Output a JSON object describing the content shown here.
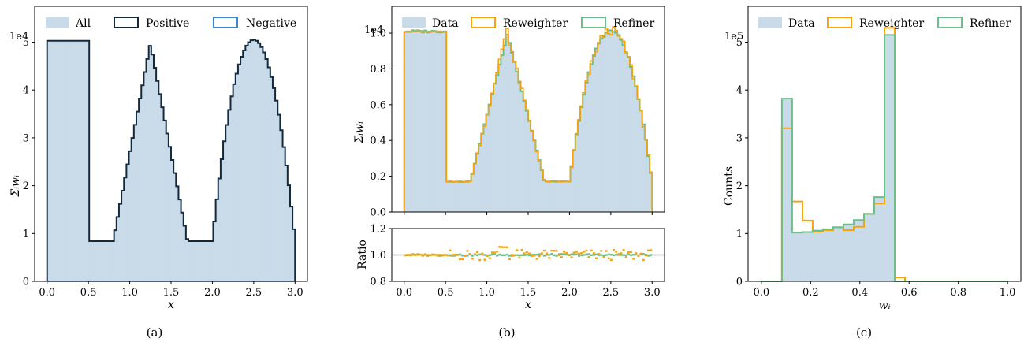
{
  "chart_data": [
    {
      "type": "area",
      "caption": "(a)",
      "xlabel": "x",
      "ylabel": "Σᵢwᵢ",
      "scale_label": "1e4",
      "xlim": [
        -0.15,
        3.15
      ],
      "ylim": [
        0,
        5.75
      ],
      "xticks": [
        0.0,
        0.5,
        1.0,
        1.5,
        2.0,
        2.5,
        3.0
      ],
      "xtick_labels": [
        "0.0",
        "0.5",
        "1.0",
        "1.5",
        "2.0",
        "2.5",
        "3.0"
      ],
      "yticks": [
        0,
        1,
        2,
        3,
        4,
        5
      ],
      "ytick_labels": [
        "0",
        "1",
        "2",
        "3",
        "4",
        "5"
      ],
      "legend": {
        "position": "top",
        "entries": [
          "All",
          "Positive",
          "Negative"
        ]
      },
      "series": [
        {
          "name": "All",
          "style": "filled",
          "color": "#c9dbe9",
          "shape": "flat 5.03 on [0,0.5]; flat 0.84 on [0.5,0.8]; triangle peak 4.97 at 1.25; flat 0.84 on [1.75,2.0]; rounded peak 5.05 at 2.5; ends at 3.0"
        },
        {
          "name": "Positive",
          "style": "step",
          "color": "#13293d",
          "shape": "identical to All"
        },
        {
          "name": "Negative",
          "style": "step",
          "color": "#3a86d4",
          "values": "0 everywhere"
        }
      ]
    },
    {
      "type": "area",
      "caption": "(b)",
      "xlabel": "x",
      "ylabel": "Σᵢwᵢ",
      "ratio_label": "Ratio",
      "scale_label": "1e4",
      "xlim": [
        -0.15,
        3.15
      ],
      "ylim": [
        0,
        1.15
      ],
      "ratio_ylim": [
        0.8,
        1.2
      ],
      "xticks": [
        0.0,
        0.5,
        1.0,
        1.5,
        2.0,
        2.5,
        3.0
      ],
      "xtick_labels": [
        "0.0",
        "0.5",
        "1.0",
        "1.5",
        "2.0",
        "2.5",
        "3.0"
      ],
      "yticks": [
        0.0,
        0.2,
        0.4,
        0.6,
        0.8,
        1.0
      ],
      "ytick_labels": [
        "0.0",
        "0.2",
        "0.4",
        "0.6",
        "0.8",
        "1.0"
      ],
      "ratio_yticks": [
        0.8,
        1.0,
        1.2
      ],
      "ratio_ytick_labels": [
        "0.8",
        "1.0",
        "1.2"
      ],
      "legend": {
        "position": "top",
        "entries": [
          "Data",
          "Reweighter",
          "Refiner"
        ]
      },
      "series": [
        {
          "name": "Data",
          "style": "filled",
          "color": "#c9dbe9",
          "shape": "flat 1.01 on [0,0.5]; flat 0.17 on [0.5,0.8]; peak 1.0 at 1.22; flat 0.17 on [1.75,2.0]; peak 1.02 at 2.55"
        },
        {
          "name": "Reweighter",
          "style": "step",
          "color": "#f5a30f",
          "shape": "follows Data with small fluctuations, peak 1.05 at 1.2"
        },
        {
          "name": "Refiner",
          "style": "step",
          "color": "#6bbf8a",
          "shape": "follows Data closely"
        }
      ],
      "ratio_series": [
        {
          "name": "Refiner",
          "color": "#6bbf8a",
          "values": "≈1.00 everywhere"
        },
        {
          "name": "Reweighter",
          "color": "#f5a30f",
          "values": "≈1.00 on [0,0.5]; fluctuates 0.94–1.19 on [0.5,3.0]"
        }
      ]
    },
    {
      "type": "bar",
      "caption": "(c)",
      "xlabel": "wᵢ",
      "ylabel": "Counts",
      "scale_label": "1e5",
      "xlim": [
        -0.054,
        1.054
      ],
      "ylim": [
        0,
        5.75
      ],
      "xticks": [
        0.0,
        0.2,
        0.4,
        0.6,
        0.8,
        1.0
      ],
      "xtick_labels": [
        "0.0",
        "0.2",
        "0.4",
        "0.6",
        "0.8",
        "1.0"
      ],
      "yticks": [
        0,
        1,
        2,
        3,
        4,
        5
      ],
      "ytick_labels": [
        "0",
        "1",
        "2",
        "3",
        "4",
        "5"
      ],
      "legend": {
        "position": "top",
        "entries": [
          "Data",
          "Reweighter",
          "Refiner"
        ]
      },
      "bin_edges": [
        0.0,
        0.0417,
        0.0833,
        0.125,
        0.1667,
        0.2083,
        0.25,
        0.2917,
        0.3333,
        0.375,
        0.4167,
        0.4583,
        0.5,
        0.5417,
        0.5833,
        0.625,
        0.6667,
        0.7083,
        0.75,
        0.7917,
        0.8333,
        0.875,
        0.9167,
        0.9583,
        1.0
      ],
      "series": [
        {
          "name": "Data",
          "style": "filled",
          "color": "#c9dbe9",
          "values": [
            0,
            0,
            3.82,
            1.02,
            1.03,
            1.06,
            1.09,
            1.13,
            1.19,
            1.28,
            1.41,
            1.76,
            5.15,
            0,
            0,
            0,
            0,
            0,
            0,
            0,
            0,
            0,
            0,
            0
          ]
        },
        {
          "name": "Reweighter",
          "style": "step",
          "color": "#f5a30f",
          "values": [
            0,
            0,
            3.2,
            1.67,
            1.27,
            1.04,
            1.07,
            1.13,
            1.07,
            1.14,
            1.41,
            1.63,
            5.3,
            0.08,
            0,
            0,
            0,
            0,
            0,
            0,
            0,
            0,
            0,
            0
          ]
        },
        {
          "name": "Refiner",
          "style": "step",
          "color": "#6bbf8a",
          "values": [
            0,
            0,
            3.82,
            1.02,
            1.03,
            1.06,
            1.09,
            1.13,
            1.19,
            1.28,
            1.41,
            1.76,
            5.15,
            0,
            0,
            0,
            0,
            0,
            0,
            0,
            0,
            0,
            0,
            0
          ]
        }
      ]
    }
  ]
}
